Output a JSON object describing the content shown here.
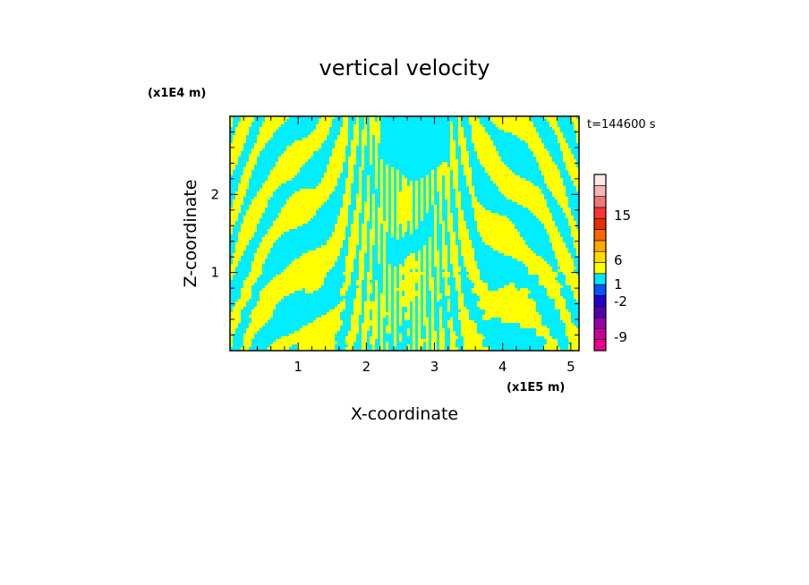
{
  "chart_data": {
    "type": "heatmap",
    "title": "vertical velocity",
    "xlabel": "X-coordinate",
    "ylabel": "Z-coordinate",
    "x_unit": "(x1E5 m)",
    "y_unit": "(x1E4 m)",
    "time_label": "t=144600 s",
    "xlim": [
      0,
      5.12
    ],
    "ylim": [
      0,
      3.0
    ],
    "x_ticks": [
      1,
      2,
      3,
      4,
      5
    ],
    "y_ticks": [
      1,
      2
    ],
    "field": "sign of vertical velocity; yellow = upward (w >= 0), cyan = downward (w < 0)",
    "legend": {
      "placement": "right",
      "levels": [
        {
          "color": "#e8008a"
        },
        {
          "color": "#cc0099"
        },
        {
          "color": "#9900aa"
        },
        {
          "color": "#5500aa"
        },
        {
          "color": "#2200cc"
        },
        {
          "color": "#0055ff"
        },
        {
          "color": "#00e5ff"
        },
        {
          "color": "#ffff00"
        },
        {
          "color": "#ffdd00"
        },
        {
          "color": "#ffaa00"
        },
        {
          "color": "#ff6600"
        },
        {
          "color": "#e83000"
        },
        {
          "color": "#ff3333"
        },
        {
          "color": "#ee7777"
        },
        {
          "color": "#f5b5b5"
        },
        {
          "color": "#fde8e8"
        }
      ],
      "labels": [
        "15",
        "6",
        "1",
        "-2",
        "-9"
      ]
    },
    "colors": {
      "positive": "#ffff00",
      "negative": "#00eeff"
    }
  }
}
